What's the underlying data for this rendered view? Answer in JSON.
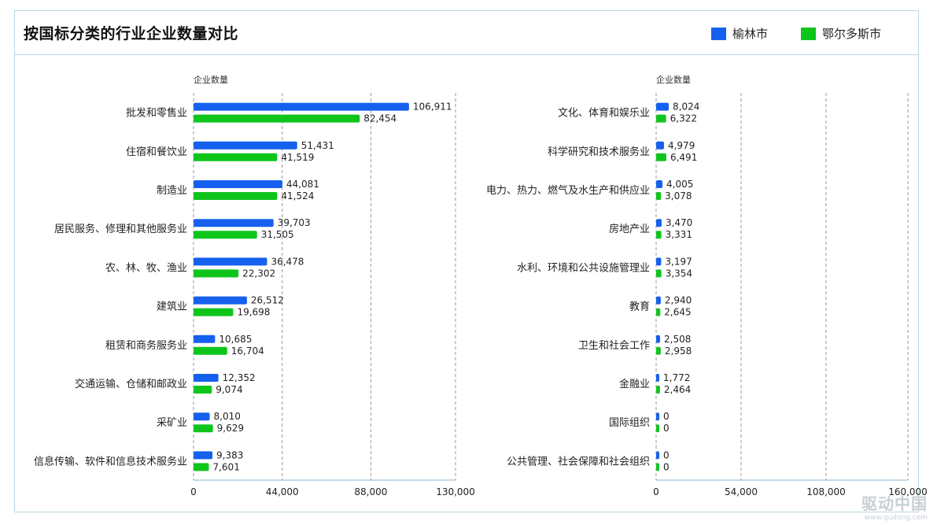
{
  "title": "按国标分类的行业企业数量对比",
  "legend": [
    {
      "name": "榆林市",
      "color": "#1560ee"
    },
    {
      "name": "鄂尔多斯市",
      "color": "#0ec51c"
    }
  ],
  "chart_data": [
    {
      "type": "bar",
      "orientation": "horizontal",
      "ylabel": "企业数量",
      "categories": [
        "批发和零售业",
        "住宿和餐饮业",
        "制造业",
        "居民服务、修理和其他服务业",
        "农、林、牧、渔业",
        "建筑业",
        "租赁和商务服务业",
        "交通运输、仓储和邮政业",
        "采矿业",
        "信息传输、软件和信息技术服务业"
      ],
      "series": [
        {
          "name": "榆林市",
          "values": [
            106911,
            51431,
            44081,
            39703,
            36478,
            26512,
            10685,
            12352,
            8010,
            9383
          ]
        },
        {
          "name": "鄂尔多斯市",
          "values": [
            82454,
            41519,
            41524,
            31505,
            22302,
            19698,
            16704,
            9074,
            9629,
            7601
          ]
        }
      ],
      "xlim": [
        0,
        130000
      ],
      "ticks": [
        0,
        44000,
        88000,
        130000
      ],
      "tick_labels": [
        "0",
        "44,000",
        "88,000",
        "130,000"
      ]
    },
    {
      "type": "bar",
      "orientation": "horizontal",
      "ylabel": "企业数量",
      "categories": [
        "文化、体育和娱乐业",
        "科学研究和技术服务业",
        "电力、热力、燃气及水生产和供应业",
        "房地产业",
        "水利、环境和公共设施管理业",
        "教育",
        "卫生和社会工作",
        "金融业",
        "国际组织",
        "公共管理、社会保障和社会组织"
      ],
      "series": [
        {
          "name": "榆林市",
          "values": [
            8024,
            4979,
            4005,
            3470,
            3197,
            2940,
            2508,
            1772,
            0,
            0
          ]
        },
        {
          "name": "鄂尔多斯市",
          "values": [
            6322,
            6491,
            3078,
            3331,
            3354,
            2645,
            2958,
            2464,
            0,
            0
          ]
        }
      ],
      "xlim": [
        0,
        160000
      ],
      "ticks": [
        0,
        54000,
        108000,
        160000
      ],
      "tick_labels": [
        "0",
        "54,000",
        "108,000",
        "160,000"
      ]
    }
  ],
  "watermark": {
    "name": "驱动中国",
    "url": "www.qudong.com"
  }
}
